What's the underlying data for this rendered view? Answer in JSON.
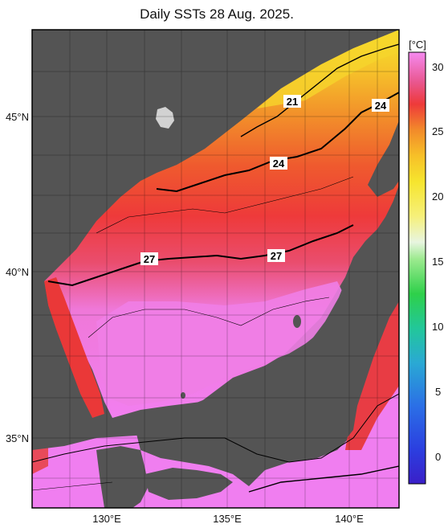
{
  "title": "Daily SSTs 28 Aug. 2025.",
  "colorbar": {
    "unit": "[°C]",
    "ticks": [
      "30",
      "25",
      "20",
      "15",
      "10",
      "5",
      "0"
    ]
  },
  "axes": {
    "lat_ticks": [
      "45°N",
      "40°N",
      "35°N"
    ],
    "lon_ticks": [
      "130°E",
      "135°E",
      "140°E"
    ]
  },
  "contour_labels": [
    "21",
    "24",
    "24",
    "27",
    "27"
  ],
  "colors": {
    "land": "#555555",
    "warm_30": "#f07ef0",
    "t27": "#ee3a3a",
    "t24": "#f08a2a",
    "t21": "#f7cc28",
    "t20": "#f6f02e"
  }
}
